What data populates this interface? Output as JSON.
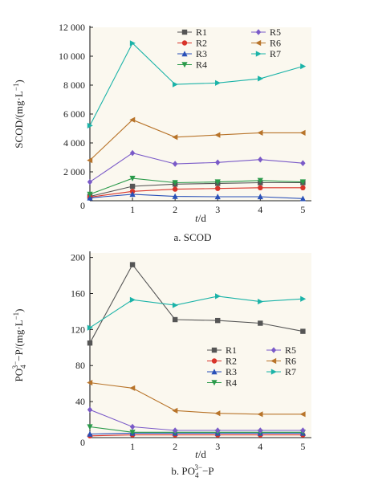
{
  "chart_data": [
    {
      "type": "line",
      "caption": "a. SCOD",
      "ylabel_parts": [
        "SCOD/(mg·L",
        "−1",
        ")"
      ],
      "xlabel_parts": [
        "t",
        "/d"
      ],
      "x": [
        0,
        1,
        2,
        3,
        4,
        5
      ],
      "xticks": [
        "0",
        "1",
        "2",
        "3",
        "4",
        "5"
      ],
      "xlim": [
        0,
        5.2
      ],
      "ylim": [
        0,
        12000
      ],
      "yticks": [
        2000,
        4000,
        6000,
        8000,
        10000,
        12000
      ],
      "ytick_labels": [
        "2 000",
        "4 000",
        "6 000",
        "8 000",
        "10 000",
        "12 000"
      ],
      "legend_position": "top-right",
      "series": [
        {
          "name": "R1",
          "color": "#555555",
          "marker": "square",
          "values": [
            300,
            1000,
            1150,
            1200,
            1250,
            1250
          ]
        },
        {
          "name": "R2",
          "color": "#d8342a",
          "marker": "circle",
          "values": [
            250,
            650,
            800,
            850,
            900,
            900
          ]
        },
        {
          "name": "R3",
          "color": "#2950b8",
          "marker": "triangle-up",
          "values": [
            200,
            450,
            300,
            280,
            280,
            150
          ]
        },
        {
          "name": "R4",
          "color": "#2a9a4a",
          "marker": "triangle-down",
          "values": [
            450,
            1550,
            1250,
            1300,
            1400,
            1300
          ]
        },
        {
          "name": "R5",
          "color": "#7a5ac8",
          "marker": "diamond",
          "values": [
            1300,
            3300,
            2550,
            2650,
            2850,
            2600
          ]
        },
        {
          "name": "R6",
          "color": "#b8742a",
          "marker": "triangle-left",
          "values": [
            2800,
            5600,
            4400,
            4550,
            4700,
            4700
          ]
        },
        {
          "name": "R7",
          "color": "#1bb3a8",
          "marker": "triangle-right",
          "values": [
            5200,
            10900,
            8050,
            8150,
            8450,
            9300
          ]
        }
      ]
    },
    {
      "type": "line",
      "caption_parts": [
        "b. PO",
        "4",
        "3−",
        "−P"
      ],
      "ylabel_parts": [
        "PO",
        "4",
        "3−",
        "−P/(mg·L",
        "−1",
        ")"
      ],
      "xlabel_parts": [
        "t",
        "/d"
      ],
      "x": [
        0,
        1,
        2,
        3,
        4,
        5
      ],
      "xticks": [
        "0",
        "1",
        "2",
        "3",
        "4",
        "5"
      ],
      "xlim": [
        0,
        5.2
      ],
      "ylim": [
        0,
        205
      ],
      "yticks": [
        40,
        80,
        120,
        160,
        200
      ],
      "ytick_labels": [
        "40",
        "80",
        "120",
        "160",
        "200"
      ],
      "legend_position": "center-right",
      "series": [
        {
          "name": "R1",
          "color": "#555555",
          "marker": "square",
          "values": [
            105,
            192,
            131,
            130,
            127,
            118
          ]
        },
        {
          "name": "R2",
          "color": "#d8342a",
          "marker": "circle",
          "values": [
            2,
            3,
            3,
            3,
            3,
            3
          ]
        },
        {
          "name": "R3",
          "color": "#2950b8",
          "marker": "triangle-up",
          "values": [
            4,
            5,
            5,
            5,
            5,
            5
          ]
        },
        {
          "name": "R4",
          "color": "#2a9a4a",
          "marker": "triangle-down",
          "values": [
            12,
            6,
            6,
            6,
            6,
            6
          ]
        },
        {
          "name": "R5",
          "color": "#7a5ac8",
          "marker": "diamond",
          "values": [
            31,
            12,
            8,
            8,
            8,
            8
          ]
        },
        {
          "name": "R6",
          "color": "#b8742a",
          "marker": "triangle-left",
          "values": [
            61,
            55,
            30,
            27,
            26,
            26
          ]
        },
        {
          "name": "R7",
          "color": "#1bb3a8",
          "marker": "triangle-right",
          "values": [
            122,
            153,
            147,
            157,
            151,
            154
          ]
        }
      ]
    }
  ]
}
